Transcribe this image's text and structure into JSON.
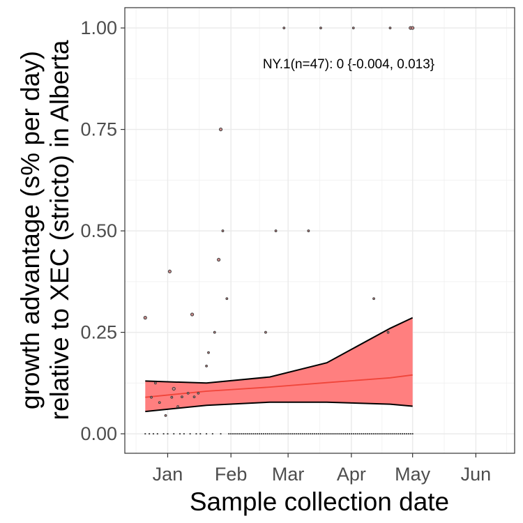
{
  "chart_data": {
    "type": "scatter",
    "xlabel": "Sample collection date",
    "ylabel_lines": [
      "growth advantage (s% per day)",
      "relative to XEC (stricto) in Alberta"
    ],
    "annotation": "NY.1(n=47): 0 {-0.004, 0.013}",
    "x_ticks": [
      {
        "label": "Jan",
        "date": "2025-01-01"
      },
      {
        "label": "Feb",
        "date": "2025-02-01"
      },
      {
        "label": "Mar",
        "date": "2025-03-01"
      },
      {
        "label": "Apr",
        "date": "2025-04-01"
      },
      {
        "label": "May",
        "date": "2025-05-01"
      },
      {
        "label": "Jun",
        "date": "2025-06-01"
      }
    ],
    "xlim": [
      "2024-12-11",
      "2025-06-20"
    ],
    "y_ticks": [
      {
        "label": "0.00",
        "value": 0
      },
      {
        "label": "0.25",
        "value": 0.25
      },
      {
        "label": "0.50",
        "value": 0.5
      },
      {
        "label": "0.75",
        "value": 0.75
      },
      {
        "label": "1.00",
        "value": 1
      }
    ],
    "ylim": [
      -0.048,
      1.05
    ],
    "grid": true,
    "colors": {
      "ribbon": "#ff7f7f",
      "fit": "#f0453a",
      "ribbon_edge": "#000000",
      "point": "#3b3b3b",
      "point_fill": "#c98a8a"
    },
    "fit": {
      "x": [
        "2024-12-21",
        "2025-01-20",
        "2025-02-20",
        "2025-03-20",
        "2025-04-20",
        "2025-05-01"
      ],
      "y": [
        0.09,
        0.105,
        0.115,
        0.126,
        0.138,
        0.145
      ],
      "lower": [
        0.055,
        0.07,
        0.078,
        0.078,
        0.073,
        0.068
      ],
      "upper": [
        0.13,
        0.125,
        0.14,
        0.175,
        0.26,
        0.286
      ]
    },
    "points": [
      {
        "x": "2024-12-21",
        "y": 0.286,
        "size": 2
      },
      {
        "x": "2024-12-24",
        "y": 0.09,
        "size": 1
      },
      {
        "x": "2024-12-26",
        "y": 0.125,
        "size": 1
      },
      {
        "x": "2024-12-28",
        "y": 0.077,
        "size": 1
      },
      {
        "x": "2024-12-31",
        "y": 0.045,
        "size": 1
      },
      {
        "x": "2025-01-02",
        "y": 0.4,
        "size": 2
      },
      {
        "x": "2025-01-03",
        "y": 0.09,
        "size": 1
      },
      {
        "x": "2025-01-04",
        "y": 0.111,
        "size": 2
      },
      {
        "x": "2025-01-06",
        "y": 0.067,
        "size": 1
      },
      {
        "x": "2025-01-08",
        "y": 0.091,
        "size": 1
      },
      {
        "x": "2025-01-11",
        "y": 0.1,
        "size": 1
      },
      {
        "x": "2025-01-13",
        "y": 0.294,
        "size": 2
      },
      {
        "x": "2025-01-14",
        "y": 0.091,
        "size": 1
      },
      {
        "x": "2025-01-16",
        "y": 0.1,
        "size": 1
      },
      {
        "x": "2025-01-20",
        "y": 0.167,
        "size": 1
      },
      {
        "x": "2025-01-21",
        "y": 0.2,
        "size": 1
      },
      {
        "x": "2025-01-24",
        "y": 0.25,
        "size": 1
      },
      {
        "x": "2025-01-26",
        "y": 0.429,
        "size": 2
      },
      {
        "x": "2025-01-27",
        "y": 0.75,
        "size": 2
      },
      {
        "x": "2025-01-28",
        "y": 0.5,
        "size": 1
      },
      {
        "x": "2025-01-30",
        "y": 0.333,
        "size": 1
      },
      {
        "x": "2025-02-18",
        "y": 0.25,
        "size": 1
      },
      {
        "x": "2025-02-23",
        "y": 0.5,
        "size": 1
      },
      {
        "x": "2025-02-27",
        "y": 1,
        "size": 1
      },
      {
        "x": "2025-03-11",
        "y": 0.5,
        "size": 1
      },
      {
        "x": "2025-03-17",
        "y": 1,
        "size": 1
      },
      {
        "x": "2025-04-02",
        "y": 1,
        "size": 1
      },
      {
        "x": "2025-04-12",
        "y": 0.333,
        "size": 1
      },
      {
        "x": "2025-04-19",
        "y": 0.25,
        "size": 1
      },
      {
        "x": "2025-04-20",
        "y": 1,
        "size": 1
      },
      {
        "x": "2025-04-30",
        "y": 1,
        "size": 2
      },
      {
        "x": "2025-05-01",
        "y": 1,
        "size": 2
      }
    ],
    "zero_points": {
      "dates": [
        "2024-12-21",
        "2024-12-23",
        "2024-12-25",
        "2024-12-27",
        "2024-12-30",
        "2025-01-01",
        "2025-01-04",
        "2025-01-07",
        "2025-01-09",
        "2025-01-12",
        "2025-01-15",
        "2025-01-17",
        "2025-01-20",
        "2025-01-23",
        "2025-01-27"
      ],
      "continuous_from": "2025-01-31",
      "continuous_to": "2025-05-01"
    }
  }
}
